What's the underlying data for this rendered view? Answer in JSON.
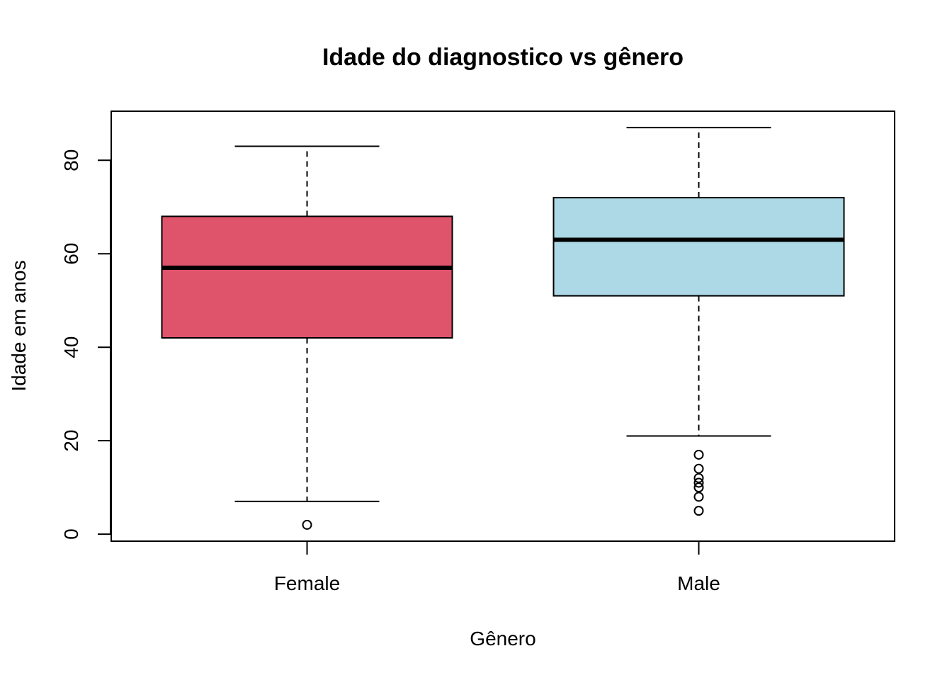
{
  "chart_data": {
    "type": "boxplot",
    "title": "Idade do diagnostico vs gênero",
    "xlabel": "Gênero",
    "ylabel": "Idade em anos",
    "ylim": [
      -1.5,
      90.5
    ],
    "yticks": [
      0,
      20,
      40,
      60,
      80
    ],
    "grid": false,
    "categories": [
      "Female",
      "Male"
    ],
    "colors": [
      "#DF536B",
      "#ADD8E6"
    ],
    "boxes": [
      {
        "category": "Female",
        "whisker_low": 7,
        "q1": 42,
        "median": 57,
        "q3": 68,
        "whisker_high": 83,
        "outliers": [
          2
        ]
      },
      {
        "category": "Male",
        "whisker_low": 21,
        "q1": 51,
        "median": 63,
        "q3": 72,
        "whisker_high": 87,
        "outliers": [
          5,
          8,
          10,
          11,
          12,
          14,
          17
        ]
      }
    ]
  }
}
